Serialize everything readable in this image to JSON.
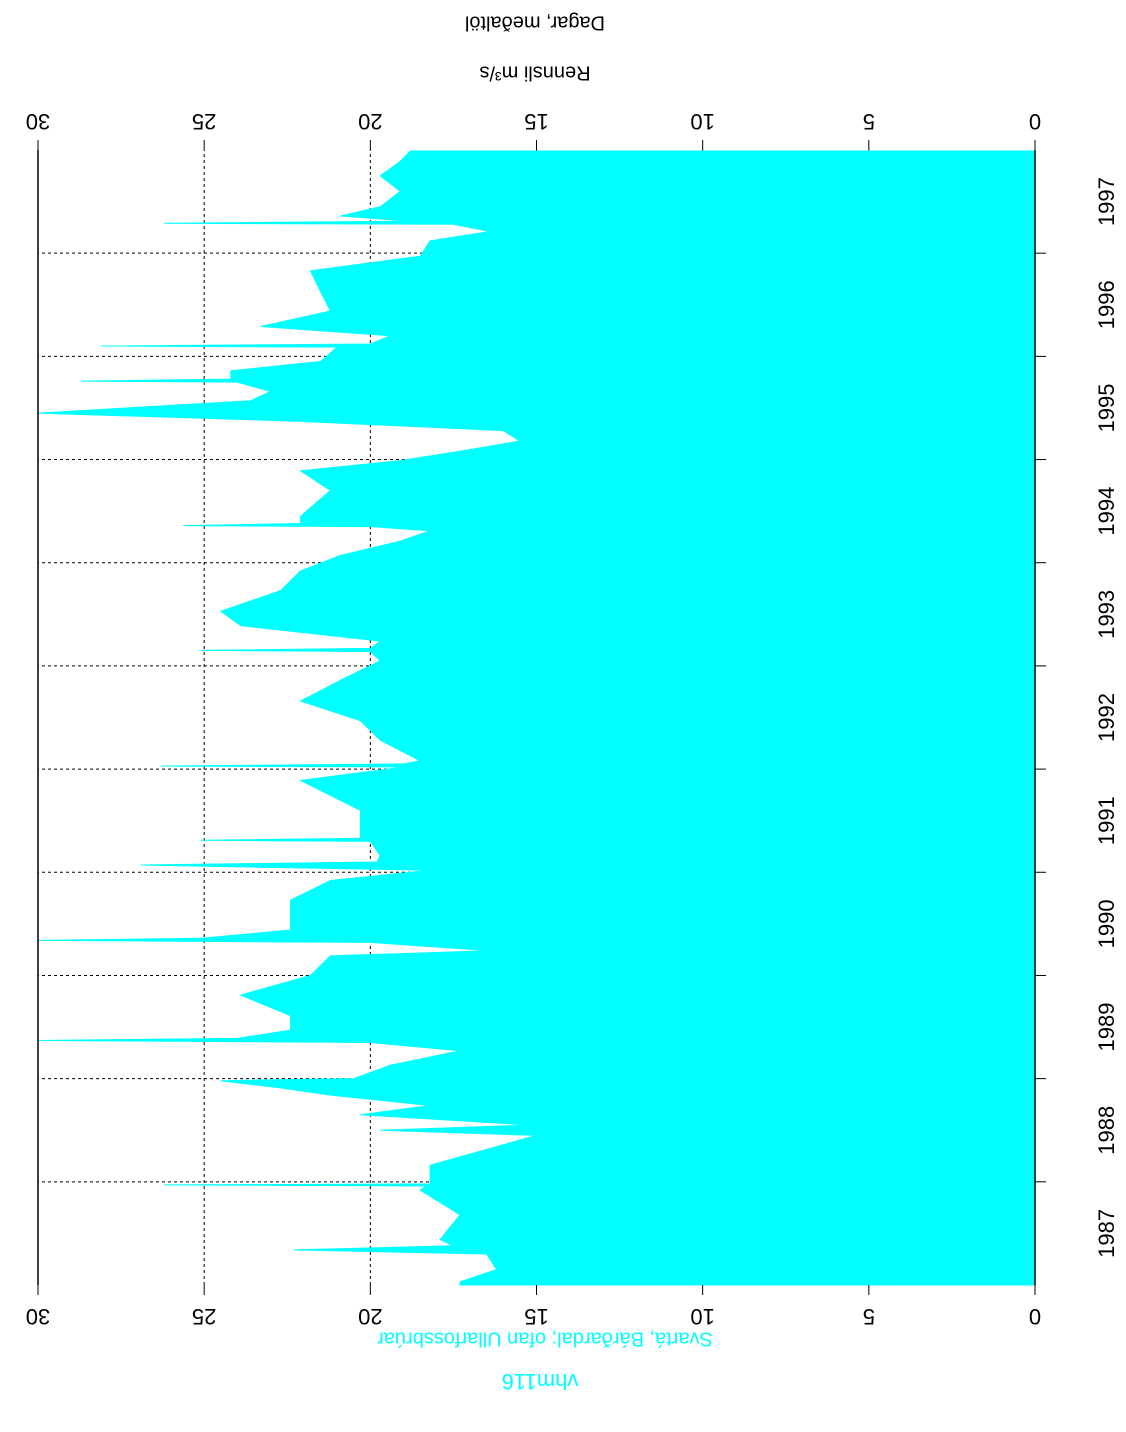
{
  "chart_data": {
    "type": "area",
    "title": "vhm116",
    "subtitle": "Svartá, Bárðardal; ofan Ullarfossbrúar",
    "ylabel": "Rennsli m³/s",
    "xlabel": "Dagar,  meðaltöl",
    "color": "#00ffff",
    "grid": true,
    "xlim": [
      1987,
      1998
    ],
    "ylim": [
      0,
      30
    ],
    "yticks": [
      0,
      5,
      10,
      15,
      20,
      25,
      30
    ],
    "xticks": [
      1988,
      1989,
      1990,
      1991,
      1992,
      1993,
      1994,
      1995,
      1996,
      1997
    ],
    "year_labels": [
      "1987",
      "1988",
      "1989",
      "1990",
      "1991",
      "1992",
      "1993",
      "1994",
      "1995",
      "1996",
      "1997"
    ],
    "x": [
      1987.0,
      1987.03,
      1987.15,
      1987.3,
      1987.34,
      1987.38,
      1987.44,
      1987.68,
      1987.92,
      1987.96,
      1987.97,
      1987.98,
      1988.16,
      1988.45,
      1988.5,
      1988.55,
      1988.65,
      1988.74,
      1988.84,
      1988.91,
      1988.98,
      1989.0,
      1989.13,
      1989.27,
      1989.35,
      1989.37,
      1989.39,
      1989.47,
      1989.61,
      1989.81,
      1990.0,
      1990.19,
      1990.24,
      1990.32,
      1990.34,
      1990.36,
      1990.44,
      1990.73,
      1990.92,
      1991.02,
      1991.07,
      1991.1,
      1991.16,
      1991.3,
      1991.31,
      1991.33,
      1991.6,
      1991.89,
      1992.02,
      1992.03,
      1992.05,
      1992.08,
      1992.28,
      1992.47,
      1992.66,
      1992.86,
      1993.05,
      1993.14,
      1993.15,
      1993.17,
      1993.24,
      1993.39,
      1993.53,
      1993.73,
      1993.92,
      1994.07,
      1994.21,
      1994.31,
      1994.35,
      1994.36,
      1994.38,
      1994.45,
      1994.7,
      1994.89,
      1994.99,
      1995.08,
      1995.18,
      1995.28,
      1995.37,
      1995.45,
      1995.57,
      1995.66,
      1995.75,
      1995.76,
      1995.78,
      1995.86,
      1995.95,
      1996.09,
      1996.1,
      1996.12,
      1996.2,
      1996.29,
      1996.44,
      1996.63,
      1996.83,
      1996.97,
      1997.12,
      1997.21,
      1997.28,
      1997.29,
      1997.31,
      1997.36,
      1997.45,
      1997.6,
      1997.75,
      1997.89,
      1997.99
    ],
    "values": [
      17.3,
      17.3,
      16.2,
      16.5,
      22.3,
      17.5,
      17.9,
      17.3,
      18.5,
      18.3,
      26.2,
      18.2,
      18.2,
      15.0,
      19.7,
      15.2,
      20.3,
      18.2,
      21.2,
      22.7,
      24.5,
      20.5,
      19.4,
      17.3,
      20.0,
      30.0,
      24.0,
      22.4,
      22.4,
      23.9,
      21.8,
      21.2,
      16.4,
      20.0,
      30.0,
      25.1,
      22.4,
      22.4,
      21.2,
      18.2,
      26.9,
      19.8,
      19.7,
      20.0,
      25.1,
      20.3,
      20.3,
      22.1,
      19.0,
      26.3,
      19.0,
      18.5,
      19.7,
      20.3,
      22.1,
      20.9,
      19.7,
      20.0,
      25.1,
      20.0,
      19.7,
      23.9,
      24.5,
      22.7,
      22.1,
      20.9,
      19.1,
      18.2,
      20.0,
      25.6,
      22.1,
      22.1,
      21.2,
      22.1,
      19.1,
      17.3,
      15.5,
      16.0,
      22.1,
      30.0,
      23.6,
      23.0,
      24.0,
      28.7,
      24.2,
      24.2,
      21.5,
      21.0,
      28.1,
      20.0,
      19.4,
      23.3,
      21.2,
      21.5,
      21.8,
      18.5,
      18.2,
      16.4,
      17.5,
      26.2,
      18.8,
      20.9,
      19.7,
      19.1,
      19.7,
      19.1,
      18.8
    ]
  }
}
